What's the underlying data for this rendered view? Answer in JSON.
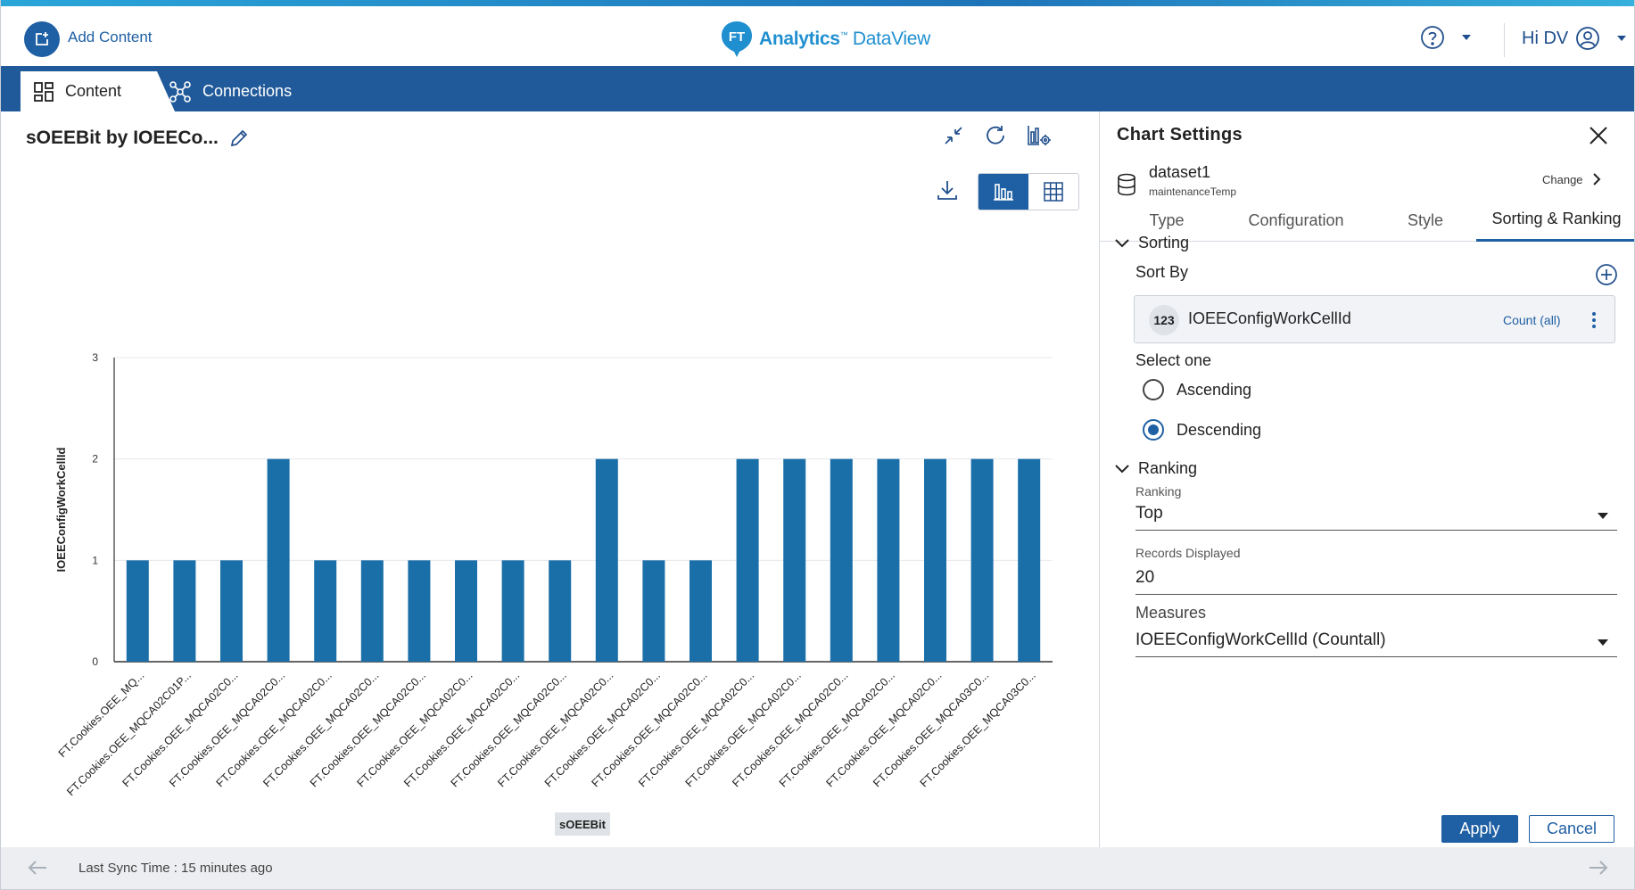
{
  "header": {
    "add_content_label": "Add Content",
    "logo_bold": "Analytics",
    "logo_tm": "™",
    "logo_light": " DataView",
    "user_greeting": "Hi DV"
  },
  "nav": {
    "tabs": [
      {
        "label": "Content",
        "icon": "grid-icon",
        "active": true
      },
      {
        "label": "Connections",
        "icon": "network-icon",
        "active": false
      }
    ]
  },
  "chart_pane": {
    "title": "sOEEBit by IOEECo...",
    "view_modes": [
      "chart",
      "table"
    ],
    "active_view": "chart"
  },
  "chart_data": {
    "type": "bar",
    "title": "",
    "xlabel": "sOEEBit",
    "ylabel": "IOEEConfigWorkCellId",
    "ylim": [
      0,
      3
    ],
    "yticks": [
      0,
      1,
      2,
      3
    ],
    "grid": true,
    "legend_position": "bottom-right",
    "bar_color": "#1a6fa8",
    "categories": [
      "FT.Cookies.OEE_MQ...",
      "FT.Cookies.OEE_MQCA02C01P...",
      "FT.Cookies.OEE_MQCA02C0...",
      "FT.Cookies.OEE_MQCA02C0...",
      "FT.Cookies.OEE_MQCA02C0...",
      "FT.Cookies.OEE_MQCA02C0...",
      "FT.Cookies.OEE_MQCA02C0...",
      "FT.Cookies.OEE_MQCA02C0...",
      "FT.Cookies.OEE_MQCA02C0...",
      "FT.Cookies.OEE_MQCA02C0...",
      "FT.Cookies.OEE_MQCA02C0...",
      "FT.Cookies.OEE_MQCA02C0...",
      "FT.Cookies.OEE_MQCA02C0...",
      "FT.Cookies.OEE_MQCA02C0...",
      "FT.Cookies.OEE_MQCA02C0...",
      "FT.Cookies.OEE_MQCA02C0...",
      "FT.Cookies.OEE_MQCA02C0...",
      "FT.Cookies.OEE_MQCA02C0...",
      "FT.Cookies.OEE_MQCA03C0...",
      "FT.Cookies.OEE_MQCA03C0..."
    ],
    "series": [
      {
        "name": "IOEEConfigWorkCellId",
        "values": [
          1,
          1,
          1,
          2,
          1,
          1,
          1,
          1,
          1,
          1,
          2,
          1,
          1,
          2,
          2,
          2,
          2,
          2,
          2,
          2
        ]
      }
    ]
  },
  "settings": {
    "title": "Chart Settings",
    "dataset_name": "dataset1",
    "dataset_sub": "maintenanceTemp",
    "change_label": "Change",
    "tabs": [
      "Type",
      "Configuration",
      "Style",
      "Sorting & Ranking"
    ],
    "active_tab": "Sorting & Ranking",
    "sorting": {
      "header": "Sorting",
      "sort_by_label": "Sort By",
      "field_badge": "123",
      "field_name": "IOEEConfigWorkCellId",
      "aggregation": "Count (all)",
      "select_one_label": "Select one",
      "options": [
        "Ascending",
        "Descending"
      ],
      "selected": "Descending"
    },
    "ranking": {
      "header": "Ranking",
      "ranking_label": "Ranking",
      "ranking_value": "Top",
      "records_label": "Records Displayed",
      "records_value": "20",
      "measures_label": "Measures",
      "measures_value": "IOEEConfigWorkCellId (Countall)"
    },
    "apply_label": "Apply",
    "cancel_label": "Cancel"
  },
  "footer": {
    "sync_text": "Last Sync Time : 15 minutes ago"
  }
}
